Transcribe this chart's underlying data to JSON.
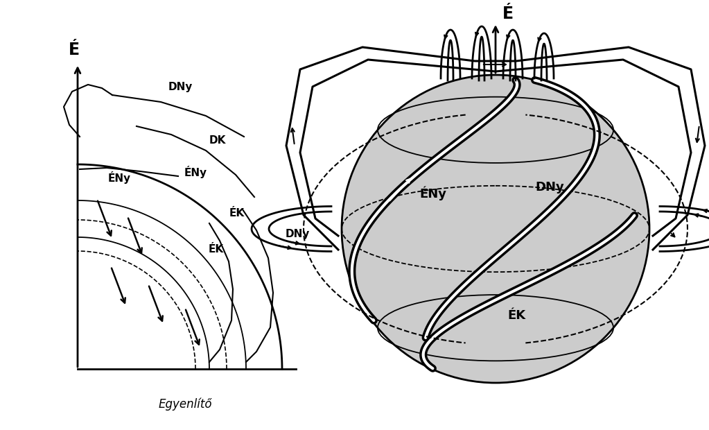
{
  "bg_color": "#ffffff",
  "line_color": "#000000",
  "globe_fill": "#cccccc",
  "left_label_E": "É",
  "left_label_equator": "Egyenlítő",
  "right_label_E": "É",
  "globe_labels": [
    "ÉNy",
    "DNy",
    "ÉK"
  ],
  "left_labels": {
    "DNy_top": "DNy",
    "ENy_1": "ÉNy",
    "DK": "DK",
    "ENy_2": "ÉNy",
    "EK_1": "ÉK",
    "DNy_right": "DNy",
    "EK_2": "ÉK"
  }
}
